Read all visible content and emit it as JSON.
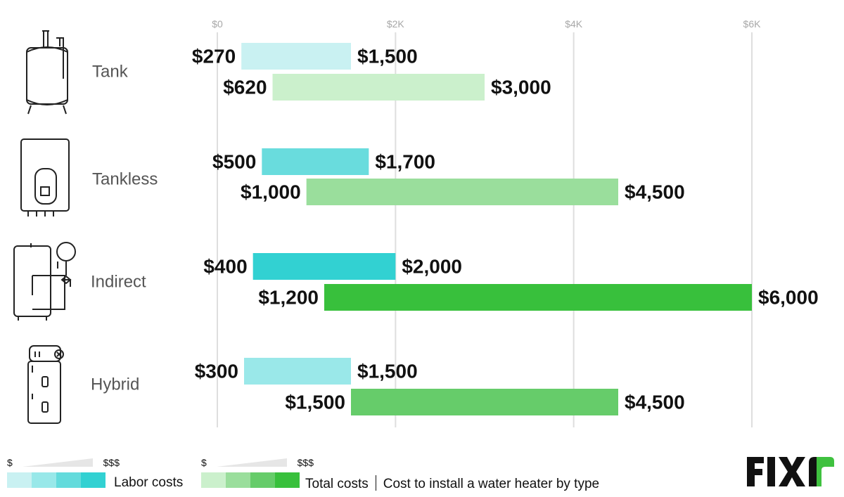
{
  "chart_data": {
    "type": "bar",
    "orientation": "horizontal-range",
    "x_ticks": [
      {
        "value": 0,
        "label": "$0"
      },
      {
        "value": 2000,
        "label": "$2K"
      },
      {
        "value": 4000,
        "label": "$4K"
      },
      {
        "value": 6000,
        "label": "$6K"
      }
    ],
    "xlim": [
      0,
      6000
    ],
    "grid": true,
    "categories": [
      {
        "name": "Tank",
        "icon": "tank-water-heater-icon",
        "labor": {
          "min": 270,
          "max": 1500,
          "min_label": "$270",
          "max_label": "$1,500"
        },
        "total": {
          "min": 620,
          "max": 3000,
          "min_label": "$620",
          "max_label": "$3,000"
        }
      },
      {
        "name": "Tankless",
        "icon": "tankless-water-heater-icon",
        "labor": {
          "min": 500,
          "max": 1700,
          "min_label": "$500",
          "max_label": "$1,700"
        },
        "total": {
          "min": 1000,
          "max": 4500,
          "min_label": "$1,000",
          "max_label": "$4,500"
        }
      },
      {
        "name": "Indirect",
        "icon": "indirect-water-heater-icon",
        "labor": {
          "min": 400,
          "max": 2000,
          "min_label": "$400",
          "max_label": "$2,000"
        },
        "total": {
          "min": 1200,
          "max": 6000,
          "min_label": "$1,200",
          "max_label": "$6,000"
        }
      },
      {
        "name": "Hybrid",
        "icon": "hybrid-water-heater-icon",
        "labor": {
          "min": 300,
          "max": 1500,
          "min_label": "$300",
          "max_label": "$1,500"
        },
        "total": {
          "min": 1500,
          "max": 4500,
          "min_label": "$1,500",
          "max_label": "$4,500"
        }
      }
    ],
    "bar_colors": {
      "labor": [
        "#c9f1f2",
        "#69dcdd",
        "#32d1d2",
        "#9ae8e9"
      ],
      "total": [
        "#cbf0cc",
        "#9ade9c",
        "#38c03c",
        "#66cc6a"
      ]
    }
  },
  "legend": {
    "labor": {
      "low": "$",
      "high": "$$$",
      "label": "Labor costs",
      "swatches": [
        "#c9f1f2",
        "#98e8e9",
        "#63dbdc",
        "#32d1d2"
      ]
    },
    "total": {
      "low": "$",
      "high": "$$$",
      "label": "Total costs",
      "swatches": [
        "#cbf0cc",
        "#9ade9c",
        "#66cc6a",
        "#38c03c"
      ]
    },
    "caption": "Cost to install a water heater by type"
  },
  "brand": {
    "logo_text": "FIXR",
    "color": "#111111",
    "accent": "#3fc13f"
  }
}
